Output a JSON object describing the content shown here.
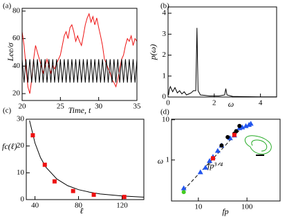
{
  "chart_data": [
    {
      "type": "line",
      "panel": "(a)",
      "xlabel": "Time,  t",
      "ylabel": "Lee/σ",
      "xlim": [
        20,
        35
      ],
      "ylim": [
        15,
        82
      ],
      "xticks": [
        20,
        25,
        30,
        35
      ],
      "yticks": [
        20,
        40,
        60,
        80
      ],
      "x": [
        20,
        20.25,
        20.5,
        20.75,
        21,
        21.25,
        21.5,
        21.75,
        22,
        22.25,
        22.5,
        22.75,
        23,
        23.25,
        23.5,
        23.75,
        24,
        24.25,
        24.5,
        24.75,
        25,
        25.25,
        25.5,
        25.75,
        26,
        26.25,
        26.5,
        26.75,
        27,
        27.25,
        27.5,
        27.75,
        28,
        28.25,
        28.5,
        28.75,
        29,
        29.25,
        29.5,
        29.75,
        30,
        30.25,
        30.5,
        30.75,
        31,
        31.25,
        31.5,
        31.75,
        32,
        32.25,
        32.5,
        32.75,
        33,
        33.25,
        33.5,
        33.75,
        34,
        34.25,
        34.5,
        34.75,
        35
      ],
      "series": [
        {
          "color": "#ee1111",
          "values": [
            65,
            55,
            40,
            25,
            20,
            30,
            45,
            55,
            50,
            45,
            40,
            35,
            40,
            45,
            40,
            35,
            40,
            38,
            42,
            45,
            48,
            55,
            62,
            65,
            60,
            68,
            70,
            65,
            58,
            62,
            58,
            55,
            62,
            70,
            75,
            78,
            72,
            76,
            70,
            75,
            68,
            62,
            55,
            45,
            42,
            38,
            35,
            30,
            28,
            25,
            30,
            38,
            45,
            48,
            55,
            60,
            58,
            62,
            55,
            60,
            58
          ]
        },
        {
          "color": "#000000",
          "values": [
            45,
            28,
            45,
            28,
            45,
            28,
            45,
            28,
            45,
            28,
            45,
            28,
            45,
            28,
            45,
            28,
            45,
            28,
            45,
            28,
            45,
            28,
            45,
            28,
            45,
            28,
            45,
            28,
            45,
            28,
            45,
            28,
            45,
            28,
            45,
            28,
            45,
            28,
            45,
            28,
            45,
            28,
            45,
            28,
            45,
            28,
            45,
            28,
            45,
            28,
            45,
            28,
            45,
            28,
            45,
            28,
            45,
            28,
            45,
            28,
            45
          ]
        }
      ]
    },
    {
      "type": "line",
      "panel": "(b)",
      "xlabel": "ω",
      "ylabel": "p(ω)",
      "xlim": [
        0,
        4.7
      ],
      "ylim": [
        0,
        4.3
      ],
      "xticks": [
        0,
        2,
        4
      ],
      "yticks": [
        0,
        1,
        2,
        3,
        4
      ],
      "x": [
        0.02,
        0.05,
        0.1,
        0.2,
        0.3,
        0.4,
        0.5,
        0.6,
        0.7,
        0.8,
        0.9,
        1.0,
        1.1,
        1.2,
        1.25,
        1.3,
        1.4,
        1.6,
        1.8,
        2.0,
        2.2,
        2.45,
        2.5,
        2.55,
        2.8,
        3.2,
        4.0,
        4.7
      ],
      "series": [
        {
          "color": "#000000",
          "values": [
            0.1,
            0.35,
            0.5,
            0.25,
            0.45,
            0.2,
            0.3,
            0.15,
            0.25,
            0.1,
            0.15,
            0.2,
            0.3,
            0.3,
            3.3,
            0.3,
            0.1,
            0.08,
            0.05,
            0.05,
            0.05,
            0.1,
            0.4,
            0.1,
            0.03,
            0.02,
            0.01,
            0.01
          ]
        }
      ]
    },
    {
      "type": "line",
      "panel": "(c)",
      "xlabel": "ℓ",
      "ylabel": "fc(ℓ)",
      "xlim": [
        32,
        140
      ],
      "ylim": [
        0,
        30
      ],
      "xticks": [
        40,
        80,
        120
      ],
      "yticks": [
        0,
        10,
        20,
        30
      ],
      "series": [
        {
          "color": "#000000",
          "x": [
            35,
            40,
            45,
            50,
            60,
            70,
            80,
            90,
            100,
            120,
            140
          ],
          "values": [
            29.5,
            21.1,
            15.7,
            12.1,
            7.7,
            5.2,
            3.7,
            2.8,
            2.1,
            1.35,
            0.9
          ]
        },
        {
          "color": "#ee1111",
          "marker": "square",
          "x": [
            38,
            49,
            58,
            75,
            94,
            122
          ],
          "values": [
            24,
            13,
            6.8,
            3.2,
            1.8,
            1
          ]
        }
      ]
    },
    {
      "type": "scatter",
      "panel": "(d)",
      "xlabel": "fp",
      "ylabel": "ω",
      "annotation": "fp³ᐟ⁴",
      "log": true,
      "xlim": [
        2.8,
        480
      ],
      "ylim": [
        0.096,
        10.3
      ],
      "xticks": [
        10,
        100
      ],
      "yticks": [
        1,
        10
      ],
      "series": [
        {
          "color": "#000000",
          "dash": true,
          "x": [
            5,
            80
          ],
          "values": [
            0.18,
            6.5
          ]
        },
        {
          "color": "#2255ee",
          "marker": "triangle",
          "x": [
            5,
            11,
            14,
            17,
            20,
            25,
            30,
            45,
            55,
            70,
            80,
            95,
            110,
            120
          ],
          "values": [
            0.2,
            0.5,
            0.65,
            0.95,
            1.2,
            1.7,
            2.3,
            3.5,
            4.1,
            6.2,
            6.5,
            7,
            7.5,
            8
          ]
        },
        {
          "color": "#000000",
          "marker": "circle",
          "x": [
            30,
            40,
            55,
            60,
            70
          ],
          "values": [
            2.3,
            3.7,
            4.5,
            5.2,
            7
          ]
        },
        {
          "color": "#ee1111",
          "marker": "square",
          "x": [
            20,
            55
          ],
          "values": [
            1.1,
            4.2
          ]
        },
        {
          "color": "#44cc22",
          "marker": "circle",
          "x": [
            5
          ],
          "values": [
            0.16
          ]
        }
      ]
    }
  ]
}
